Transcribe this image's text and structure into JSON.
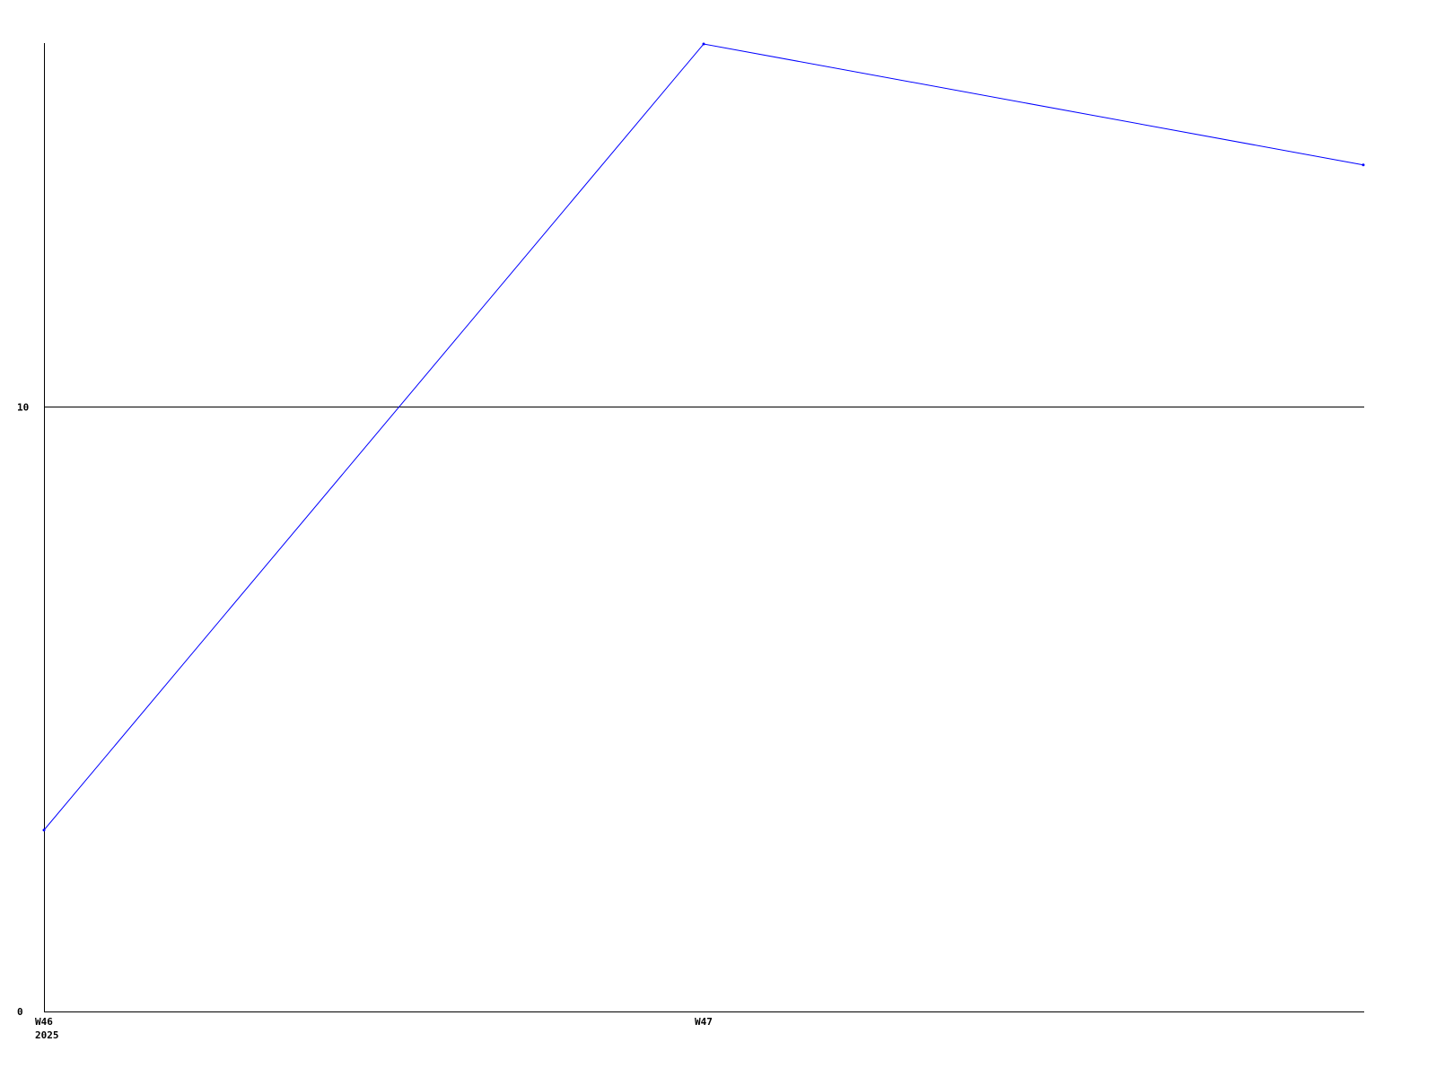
{
  "chart_data": {
    "type": "line",
    "title": "",
    "xlabel": "",
    "ylabel": "",
    "x": [
      "W46",
      "W47",
      ""
    ],
    "x_year_label": "2025",
    "series": [
      {
        "values": [
          3,
          16,
          14
        ],
        "color": "#0000ff"
      }
    ],
    "ylim": [
      0,
      16
    ],
    "y_ticks": [
      0,
      10
    ],
    "y_tick_labels": [
      "0",
      "10"
    ],
    "grid": "horizontal line at 10",
    "axis_color": "#000000",
    "legend": "none"
  }
}
